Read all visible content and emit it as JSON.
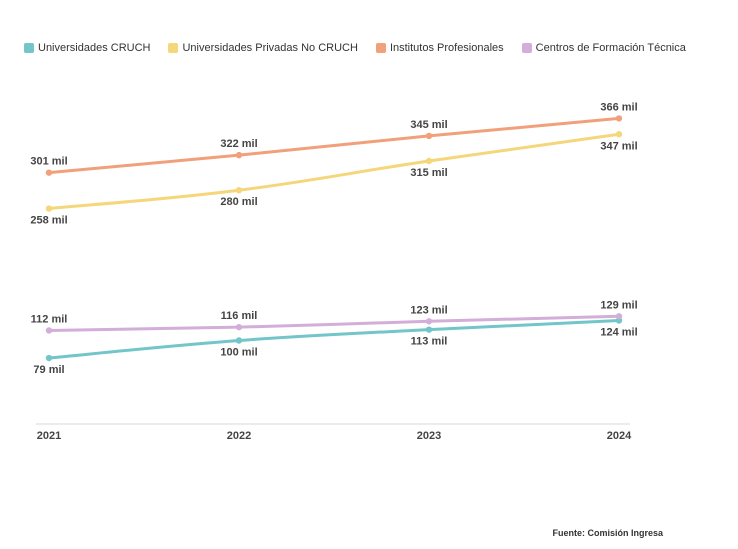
{
  "legend_placement": "top-left",
  "source_text": "Fuente: Comisión Ingresa",
  "chart_data": {
    "type": "line",
    "x": [
      "2021",
      "2022",
      "2023",
      "2024"
    ],
    "ylim": [
      0,
      400
    ],
    "grid": false,
    "series": [
      {
        "name": "Universidades CRUCH",
        "color": "#72c5c8",
        "values": [
          79,
          100,
          113,
          124
        ],
        "labels": [
          "79 mil",
          "100 mil",
          "113 mil",
          "124 mil"
        ],
        "label_pos": [
          "below",
          "below",
          "below",
          "below"
        ]
      },
      {
        "name": "Universidades Privadas No CRUCH",
        "color": "#f5d67a",
        "values": [
          258,
          280,
          315,
          347
        ],
        "labels": [
          "258 mil",
          "280 mil",
          "315 mil",
          "347 mil"
        ],
        "label_pos": [
          "below",
          "below",
          "below",
          "below"
        ]
      },
      {
        "name": "Institutos Profesionales",
        "color": "#f0a07a",
        "values": [
          301,
          322,
          345,
          366
        ],
        "labels": [
          "301 mil",
          "322 mil",
          "345 mil",
          "366 mil"
        ],
        "label_pos": [
          "above",
          "above",
          "above",
          "above"
        ]
      },
      {
        "name": "Centros de Formación Técnica",
        "color": "#d2aed8",
        "values": [
          112,
          116,
          123,
          129
        ],
        "labels": [
          "112 mil",
          "116 mil",
          "123 mil",
          "129 mil"
        ],
        "label_pos": [
          "above",
          "above",
          "above",
          "above"
        ]
      }
    ]
  }
}
